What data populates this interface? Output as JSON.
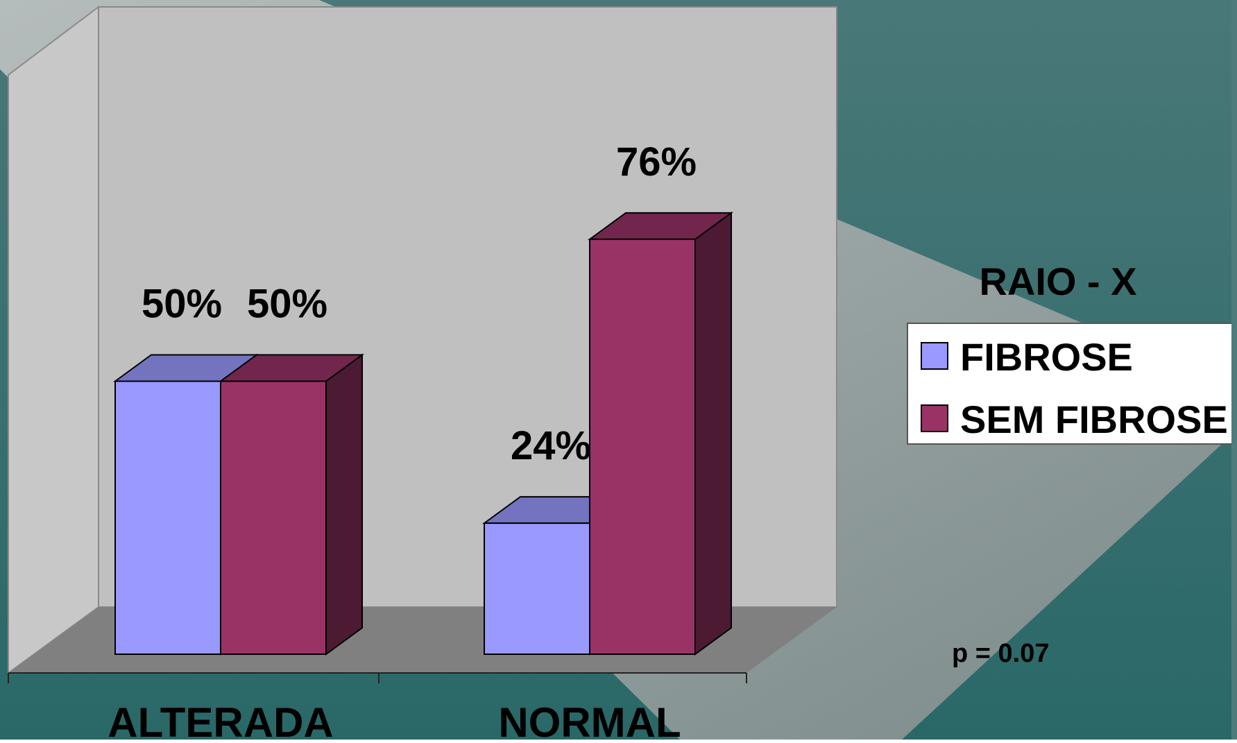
{
  "chart_data": {
    "type": "bar",
    "title": "",
    "xlabel": "",
    "ylabel": "",
    "ylim": [
      0,
      100
    ],
    "grid": false,
    "legend_position": "right",
    "legend_title": "RAIO - X",
    "categories": [
      "ALTERADA",
      "NORMAL"
    ],
    "series": [
      {
        "name": "FIBROSE",
        "values": [
          50,
          24
        ],
        "labels": [
          "50%",
          "24%"
        ],
        "color": "#9999FF"
      },
      {
        "name": "SEM FIBROSE",
        "values": [
          50,
          76
        ],
        "labels": [
          "50%",
          "76%"
        ],
        "color": "#993366"
      }
    ],
    "annotation": "p = 0.07"
  },
  "colors": {
    "background_teal": "#2A6A6A",
    "background_grey": "#8C9696",
    "wall": "#C0C0C0",
    "floor": "#808080",
    "fibrose": "#9999FF",
    "sem_fibrose": "#993366"
  }
}
